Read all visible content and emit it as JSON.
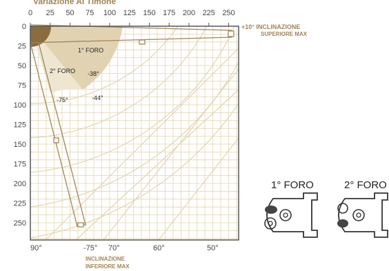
{
  "header": {
    "title": "Variazione Al Timone"
  },
  "axes": {
    "x_ticks": [
      "0",
      "25",
      "50",
      "75",
      "100",
      "125",
      "150",
      "175",
      "200",
      "225",
      "250"
    ],
    "y_ticks": [
      "0",
      "25",
      "50",
      "75",
      "100",
      "125",
      "150",
      "175",
      "200",
      "225",
      "250"
    ],
    "angle_ticks": [
      "90°",
      "-75°",
      "70°",
      "60°",
      "50°"
    ]
  },
  "annotations": {
    "upper": {
      "line1": "+10° INCLINAZIONE",
      "line2": "SUPERIORE MAX"
    },
    "lower": {
      "line1": "INCLINAZIONE",
      "line2": "INFERIORE MAX"
    },
    "foro1": "1° FORO",
    "foro2": "2° FORO",
    "angle_38": "-38°",
    "angle_44": "-44°",
    "angle_75": "-75°"
  },
  "details": {
    "foro1_title": "1° FORO",
    "foro2_title": "2° FORO"
  },
  "colors": {
    "gold": "#a08457",
    "grid": "#e3d4b0",
    "frame": "#555555",
    "pivot": "#8c6b3e",
    "sector_light": "#efe6d2",
    "sector_mid": "#e1d3b2"
  }
}
